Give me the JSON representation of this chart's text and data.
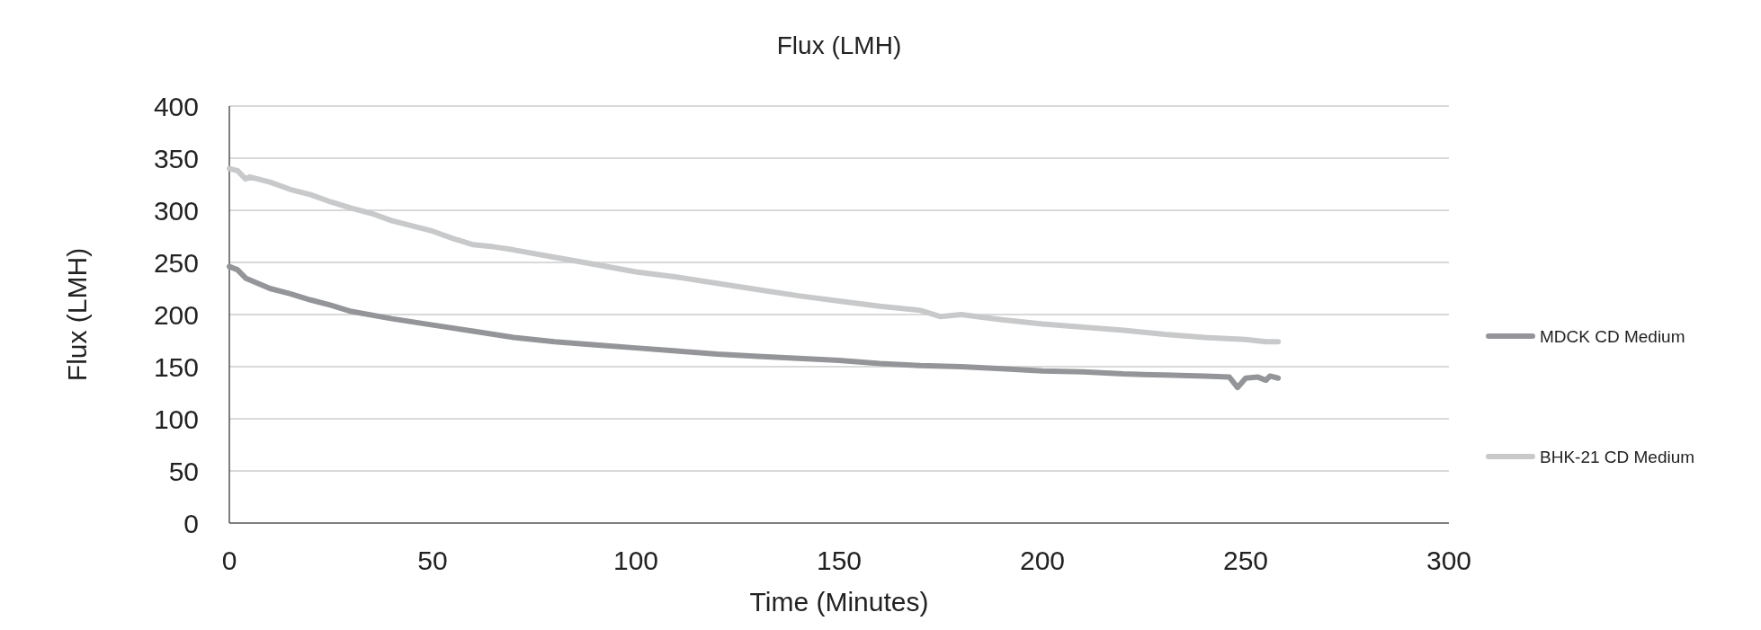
{
  "chart_data": {
    "type": "line",
    "title": "Flux (LMH)",
    "xlabel": "Time (Minutes)",
    "ylabel": "Flux (LMH)",
    "xlim": [
      0,
      300
    ],
    "xticks": [
      0,
      50,
      100,
      150,
      200,
      250,
      300
    ],
    "ylim": [
      0,
      400
    ],
    "yticks": [
      0,
      50,
      100,
      150,
      200,
      250,
      300,
      350,
      400
    ],
    "grid": "y",
    "legend": "right",
    "marker": "none",
    "line_style": "solid",
    "series": [
      {
        "name": "MDCK CD Medium",
        "color": "#939598",
        "x": [
          0,
          2,
          4,
          10,
          15,
          20,
          25,
          30,
          40,
          50,
          60,
          70,
          80,
          90,
          100,
          110,
          120,
          130,
          140,
          150,
          160,
          170,
          180,
          190,
          200,
          210,
          220,
          230,
          240,
          246,
          248,
          250,
          253,
          255,
          256,
          258
        ],
        "values": [
          246,
          243,
          235,
          225,
          220,
          214,
          209,
          203,
          196,
          190,
          184,
          178,
          174,
          171,
          168,
          165,
          162,
          160,
          158,
          156,
          153,
          151,
          150,
          148,
          146,
          145,
          143,
          142,
          141,
          140,
          130,
          139,
          140,
          137,
          141,
          139
        ]
      },
      {
        "name": "BHK-21 CD Medium",
        "color": "#c8c9ca",
        "x": [
          0,
          2,
          4,
          5,
          10,
          15,
          20,
          25,
          30,
          35,
          40,
          45,
          50,
          55,
          60,
          65,
          70,
          80,
          90,
          100,
          110,
          120,
          130,
          140,
          150,
          160,
          170,
          175,
          180,
          190,
          200,
          210,
          220,
          230,
          240,
          250,
          255,
          258
        ],
        "values": [
          340,
          338,
          330,
          332,
          327,
          320,
          315,
          308,
          302,
          297,
          290,
          285,
          280,
          273,
          267,
          265,
          262,
          255,
          248,
          241,
          236,
          230,
          224,
          218,
          213,
          208,
          204,
          198,
          200,
          195,
          191,
          188,
          185,
          181,
          178,
          176,
          174,
          174
        ]
      }
    ]
  }
}
